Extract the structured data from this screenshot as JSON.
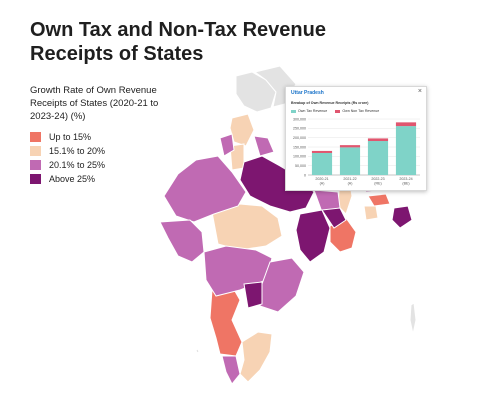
{
  "title": "Own Tax and Non-Tax Revenue Receipts of States",
  "legend": {
    "heading": "Growth Rate of Own Revenue Receipts of States (2020-21 to 2023-24) (%)",
    "items": [
      {
        "label": "Up to 15%",
        "color": "#ef7565"
      },
      {
        "label": "15.1% to 20%",
        "color": "#f7d3b4"
      },
      {
        "label": "20.1% to 25%",
        "color": "#c06ab3"
      },
      {
        "label": "Above 25%",
        "color": "#7d1670"
      }
    ]
  },
  "map": {
    "na_color": "#e3e3e3",
    "border_color": "#ffffff"
  },
  "popup": {
    "state": "Uttar Pradesh",
    "close": "×",
    "subtitle": "Breakup of Own Revenue Receipts (Rs crore)",
    "chart_data": {
      "type": "bar",
      "stacked": true,
      "categories": [
        "2020-21 (A)",
        "2021-22 (A)",
        "2022-23 (RE)",
        "2023-24 (BE)"
      ],
      "series": [
        {
          "name": "Own Tax Revenue",
          "color": "#7fd3c8",
          "values": [
            118000,
            148000,
            182000,
            262000
          ]
        },
        {
          "name": "Own Non Tax Revenue",
          "color": "#e0566f",
          "values": [
            11000,
            12000,
            14000,
            20000
          ]
        }
      ],
      "yticks": [
        "0",
        "50,000",
        "100,000",
        "150,000",
        "200,000",
        "250,000",
        "300,000"
      ],
      "ylim": [
        0,
        300000
      ]
    }
  }
}
